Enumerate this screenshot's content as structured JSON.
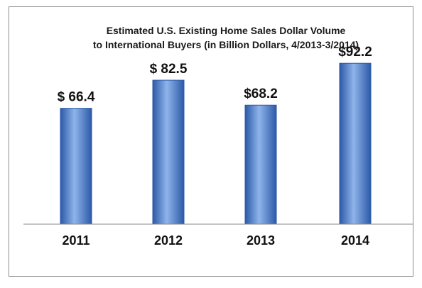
{
  "chart_data": {
    "type": "bar",
    "title": "Estimated U.S. Existing Home Sales Dollar Volume",
    "subtitle": "to  International  Buyers (in Billion Dollars, 4/2013-3/2014)",
    "categories": [
      "2011",
      "2012",
      "2013",
      "2014"
    ],
    "values": [
      66.4,
      82.5,
      68.2,
      92.2
    ],
    "value_labels": [
      "$ 66.4",
      "$ 82.5",
      "$68.2",
      "$92.2"
    ],
    "xlabel": "",
    "ylabel": "",
    "ylim": [
      0,
      100
    ],
    "grid": false,
    "legend": "none",
    "colors": {
      "bar_light": "#8fb4ea",
      "bar_mid": "#4f81d0",
      "bar_dark": "#2c5aa8",
      "axis": "#888888"
    }
  }
}
